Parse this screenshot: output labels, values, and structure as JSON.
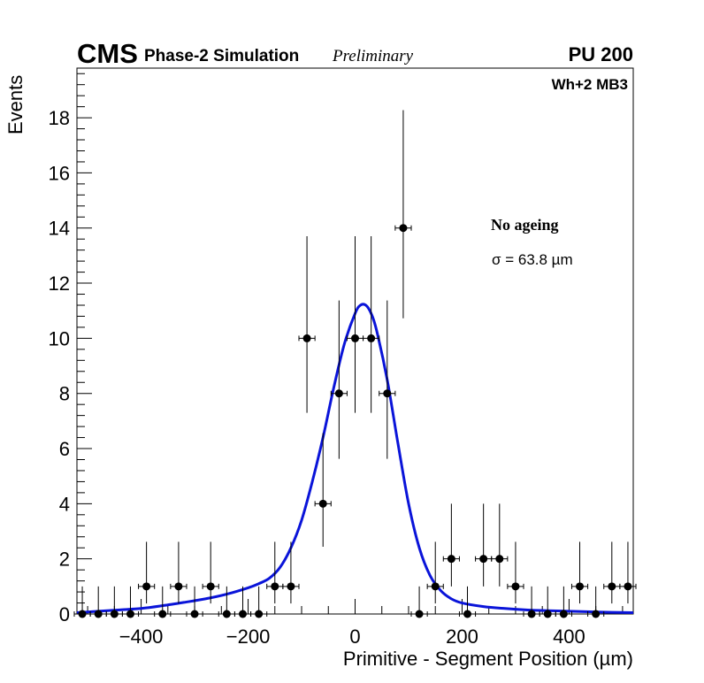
{
  "header": {
    "experiment": "CMS",
    "subtitle": "Phase-2 Simulation",
    "status": "Preliminary",
    "pileup": "PU 200"
  },
  "labels": {
    "chamber": "Wh+2 MB3",
    "condition": "No ageing",
    "sigma": "σ = 63.8 µm"
  },
  "chart_data": {
    "type": "scatter",
    "title": "",
    "xlabel": "Primitive - Segment Position (µm)",
    "ylabel": "Events",
    "xlim": [
      -520,
      520
    ],
    "ylim": [
      0,
      19.8
    ],
    "bin_width": 30,
    "x_ticks": [
      -400,
      -200,
      0,
      200,
      400
    ],
    "x_tick_labels": [
      "−400",
      "−200",
      "0",
      "200",
      "400"
    ],
    "y_ticks": [
      0,
      2,
      4,
      6,
      8,
      10,
      12,
      14,
      16,
      18
    ],
    "y_tick_labels": [
      "0",
      "2",
      "4",
      "6",
      "8",
      "10",
      "12",
      "14",
      "16",
      "18"
    ],
    "series": [
      {
        "name": "Data",
        "style": "points with error bars",
        "color": "#000000",
        "x": [
          -510,
          -480,
          -450,
          -420,
          -390,
          -360,
          -330,
          -300,
          -270,
          -240,
          -210,
          -180,
          -150,
          -120,
          -90,
          -60,
          -30,
          0,
          30,
          60,
          90,
          120,
          150,
          180,
          210,
          240,
          270,
          300,
          330,
          360,
          390,
          420,
          450,
          480,
          510
        ],
        "y": [
          0,
          0,
          0,
          0,
          1,
          0,
          1,
          0,
          1,
          0,
          0,
          0,
          1,
          1,
          10,
          4,
          8,
          10,
          10,
          8,
          14,
          0,
          1,
          2,
          0,
          2,
          2,
          1,
          0,
          0,
          0,
          1,
          0,
          1,
          1
        ]
      },
      {
        "name": "Fit",
        "style": "line",
        "color": "#0a14d9",
        "x": [
          -520,
          -480,
          -440,
          -400,
          -360,
          -320,
          -280,
          -240,
          -200,
          -180,
          -160,
          -140,
          -120,
          -100,
          -80,
          -60,
          -40,
          -20,
          0,
          10,
          20,
          30,
          40,
          60,
          80,
          100,
          120,
          140,
          160,
          180,
          200,
          240,
          280,
          320,
          360,
          400,
          440,
          480,
          520
        ],
        "y": [
          0.05,
          0.1,
          0.15,
          0.2,
          0.3,
          0.42,
          0.55,
          0.72,
          0.95,
          1.1,
          1.3,
          1.7,
          2.4,
          3.4,
          4.8,
          6.4,
          8.2,
          9.8,
          10.9,
          11.2,
          11.2,
          10.9,
          10.3,
          8.5,
          6.2,
          4.0,
          2.4,
          1.4,
          0.85,
          0.55,
          0.4,
          0.27,
          0.2,
          0.15,
          0.12,
          0.1,
          0.08,
          0.06,
          0.05
        ]
      }
    ]
  }
}
